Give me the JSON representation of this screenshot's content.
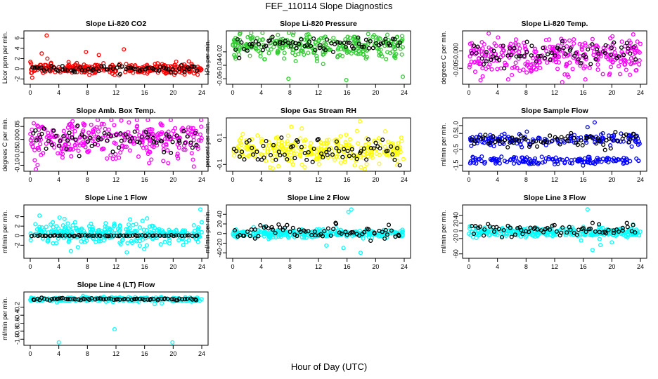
{
  "title": "FEF_110114  Slope Diagnostics",
  "xlabel": "Hour of Day (UTC)",
  "colors": {
    "black": "#000000",
    "red": "#ff0000",
    "green": "#33cc33",
    "magenta": "#ff00ff",
    "yellow": "#ffff00",
    "blue": "#0000ff",
    "cyan": "#00ffff"
  },
  "chart_data": [
    {
      "type": "scatter",
      "title": "Slope Li-820 CO2",
      "ylabel": "Licor ppm per min.",
      "xlim": [
        0,
        24
      ],
      "ylim": [
        -2.6,
        7
      ],
      "yticks": [
        -2,
        0,
        2,
        4,
        6
      ],
      "ytick_labels": [
        "-2",
        "0",
        "2",
        "4",
        "6"
      ],
      "xticks": [
        0,
        4,
        8,
        12,
        16,
        20,
        24
      ],
      "grid": false,
      "color": "#ff0000",
      "main": {
        "center": 0,
        "spread": 0.5
      },
      "alt": {
        "center": 0,
        "spread": 0.3
      },
      "outliers": [
        [
          2.3,
          6.5
        ],
        [
          13.1,
          3.8
        ],
        [
          1.6,
          3.0
        ],
        [
          7.8,
          3.3
        ],
        [
          9.6,
          2.7
        ],
        [
          2.4,
          2.0
        ]
      ]
    },
    {
      "type": "scatter",
      "title": "Slope Li-820 Pressure",
      "ylabel": "kPa per min.",
      "xlim": [
        0,
        24
      ],
      "ylim": [
        -0.065,
        0.008
      ],
      "yticks": [
        -0.06,
        -0.04,
        -0.02
      ],
      "ytick_labels": [
        "-0.06",
        "-0.04",
        "-0.02"
      ],
      "xticks": [
        0,
        4,
        8,
        12,
        16,
        20,
        24
      ],
      "grid": false,
      "color": "#33cc33",
      "main": {
        "center": -0.011,
        "spread": 0.009
      },
      "alt": {
        "center": -0.009,
        "spread": 0.005
      },
      "outliers": [
        [
          7.8,
          -0.06
        ],
        [
          15.9,
          -0.062
        ],
        [
          23.8,
          -0.057
        ],
        [
          11.8,
          -0.03
        ]
      ]
    },
    {
      "type": "scatter",
      "title": "Slope Li-820 Temp.",
      "ylabel": "degrees C per min.",
      "xlim": [
        0,
        24
      ],
      "ylim": [
        -0.009,
        0.0052
      ],
      "yticks": [
        -0.005,
        0.0
      ],
      "ytick_labels": [
        "-0.005",
        "0.000"
      ],
      "xticks": [
        0,
        4,
        8,
        12,
        16,
        20,
        24
      ],
      "grid": false,
      "color": "#ff00ff",
      "main": {
        "center": -0.0015,
        "spread": 0.0028
      },
      "alt": {
        "center": -0.001,
        "spread": 0.0018
      },
      "outliers": [
        [
          23.0,
          0.0048
        ],
        [
          16.3,
          -0.0082
        ],
        [
          5.5,
          -0.0082
        ]
      ]
    },
    {
      "type": "scatter",
      "title": "Slope Amb. Box Temp.",
      "ylabel": "degrees C per min.",
      "xlim": [
        0,
        24
      ],
      "ylim": [
        -0.115,
        0.075
      ],
      "yticks": [
        -0.1,
        -0.05,
        0.0,
        0.05
      ],
      "ytick_labels": [
        "-0.10",
        "-0.05",
        "0.00",
        "0.05"
      ],
      "xticks": [
        0,
        4,
        8,
        12,
        16,
        20,
        24
      ],
      "grid": false,
      "color": "#ff00ff",
      "main": {
        "center": 0,
        "spread": 0.035
      },
      "alt": {
        "center": 0,
        "spread": 0.022
      },
      "outliers": [
        [
          22.9,
          -0.105
        ]
      ]
    },
    {
      "type": "scatter",
      "title": "Slope Gas Stream RH",
      "ylabel": "percent per min.",
      "xlim": [
        0,
        24
      ],
      "ylim": [
        -0.135,
        0.23
      ],
      "yticks": [
        -0.1,
        0.1
      ],
      "ytick_labels": [
        "-0.1",
        "0.1"
      ],
      "xticks": [
        0,
        4,
        8,
        12,
        16,
        20,
        24
      ],
      "grid": false,
      "color": "#ffff00",
      "main": {
        "center": 0,
        "spread": 0.05
      },
      "alt": {
        "center": 0.01,
        "spread": 0.05
      },
      "outliers": [
        [
          17.8,
          0.22
        ],
        [
          8.2,
          0.18
        ]
      ]
    },
    {
      "type": "scatter",
      "title": "Slope Sample Flow",
      "ylabel": "ml/min per min.",
      "xlim": [
        0,
        24
      ],
      "ylim": [
        -1.75,
        1.35
      ],
      "yticks": [
        -1.5,
        -0.5,
        0.5,
        1.0
      ],
      "ytick_labels": [
        "-1.5",
        "-0.5",
        "0.5",
        "1.0"
      ],
      "xticks": [
        0,
        4,
        8,
        12,
        16,
        20,
        24
      ],
      "grid": false,
      "color": "#0000ff",
      "bands": [
        [
          0.1,
          0.18
        ],
        [
          -1.2,
          0.12
        ]
      ],
      "alt": {
        "center": 0.1,
        "spread": 0.25
      },
      "outliers": [
        [
          17.6,
          1.2
        ],
        [
          16.6,
          0.9
        ]
      ]
    },
    {
      "type": "scatter",
      "title": "Slope Line 1 Flow",
      "ylabel": "ml/min per min.",
      "xlim": [
        0,
        24
      ],
      "ylim": [
        -4.3,
        6
      ],
      "yticks": [
        -2,
        0,
        2,
        4
      ],
      "ytick_labels": [
        "-2",
        "0",
        "2",
        "4"
      ],
      "xticks": [
        0,
        4,
        8,
        12,
        16,
        20,
        24
      ],
      "grid": false,
      "color": "#00ffff",
      "main": {
        "center": 0.5,
        "spread": 1.1
      },
      "alt": {
        "center": 0,
        "spread": 0.05
      },
      "outliers": [
        [
          23.8,
          5.5
        ],
        [
          13.5,
          -3.5
        ],
        [
          1.3,
          4.2
        ],
        [
          4.1,
          3.8
        ]
      ]
    },
    {
      "type": "scatter",
      "title": "Slope Line 2 Flow",
      "ylabel": "ml/min per min.",
      "xlim": [
        0,
        24
      ],
      "ylim": [
        -47,
        55
      ],
      "yticks": [
        -40,
        -20,
        0,
        20,
        40
      ],
      "ytick_labels": [
        "-40",
        "-20",
        "0",
        "20",
        "40"
      ],
      "xticks": [
        0,
        4,
        8,
        12,
        16,
        20,
        24
      ],
      "grid": false,
      "color": "#00ffff",
      "main": {
        "center": 0,
        "spread": 4
      },
      "alt": {
        "center": 3,
        "spread": 8
      },
      "outliers": [
        [
          16.6,
          50
        ],
        [
          17.9,
          -40
        ],
        [
          15.5,
          -30
        ],
        [
          13.1,
          -25
        ],
        [
          16.2,
          45
        ]
      ]
    },
    {
      "type": "scatter",
      "title": "Slope Line 3 Flow",
      "ylabel": "ml/min per min.",
      "xlim": [
        0,
        24
      ],
      "ylim": [
        -66,
        62
      ],
      "yticks": [
        -60,
        -20,
        0,
        20,
        40
      ],
      "ytick_labels": [
        "-60",
        "-20",
        "0",
        "20",
        "40"
      ],
      "xticks": [
        0,
        4,
        8,
        12,
        16,
        20,
        24
      ],
      "grid": false,
      "color": "#00ffff",
      "main": {
        "center": -3,
        "spread": 6
      },
      "alt": {
        "center": 3,
        "spread": 10
      },
      "outliers": [
        [
          16.6,
          56
        ],
        [
          17.3,
          -50
        ],
        [
          18.4,
          -37
        ],
        [
          20.0,
          -30
        ],
        [
          15.7,
          -25
        ]
      ]
    },
    {
      "type": "scatter",
      "title": "Slope Line 4 (LT) Flow",
      "ylabel": "ml/min per min.",
      "xlim": [
        0,
        24
      ],
      "ylim": [
        -1.1,
        0.13
      ],
      "yticks": [
        -1.0,
        -0.8,
        -0.6,
        -0.4,
        -0.2
      ],
      "ytick_labels": [
        "-1.0",
        "-0.8",
        "-0.6",
        "-0.4",
        "-0.2"
      ],
      "xticks": [
        0,
        4,
        8,
        12,
        16,
        20,
        24
      ],
      "grid": false,
      "color": "#00ffff",
      "main": {
        "center": 0,
        "spread": 0.025
      },
      "alt": {
        "center": 0,
        "spread": 0.015
      },
      "outliers": [
        [
          4.0,
          -1.08
        ],
        [
          19.9,
          -1.08
        ],
        [
          11.8,
          -0.75
        ],
        [
          18.4,
          -0.1
        ],
        [
          17.4,
          -0.12
        ]
      ]
    }
  ]
}
